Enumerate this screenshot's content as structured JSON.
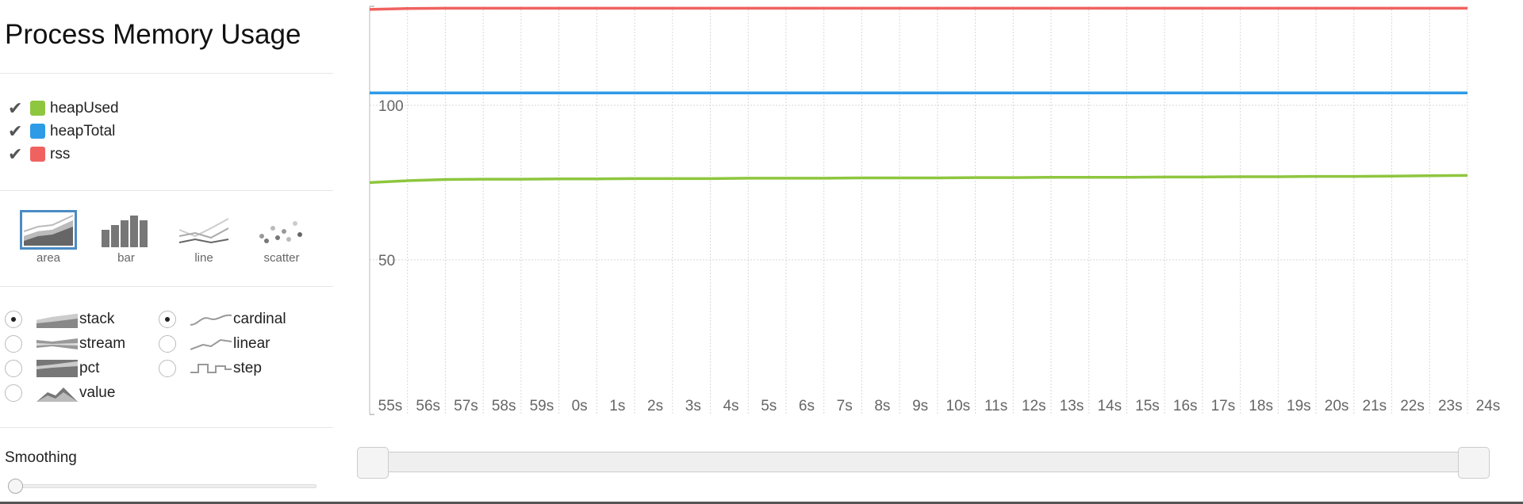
{
  "title": "Process Memory Usage",
  "legend": [
    {
      "label": "heapUsed",
      "color": "#8ec63f",
      "checked": true
    },
    {
      "label": "heapTotal",
      "color": "#2e9be6",
      "checked": true
    },
    {
      "label": "rss",
      "color": "#f0625f",
      "checked": true
    }
  ],
  "renderers": [
    {
      "label": "area",
      "icon": "area-chart-icon",
      "active": true
    },
    {
      "label": "bar",
      "icon": "bar-chart-icon",
      "active": false
    },
    {
      "label": "line",
      "icon": "line-chart-icon",
      "active": false
    },
    {
      "label": "scatter",
      "icon": "scatter-chart-icon",
      "active": false
    }
  ],
  "offsets": [
    {
      "label": "stack",
      "icon": "stack-icon",
      "selected": true
    },
    {
      "label": "stream",
      "icon": "stream-icon",
      "selected": false
    },
    {
      "label": "pct",
      "icon": "pct-icon",
      "selected": false
    },
    {
      "label": "value",
      "icon": "value-icon",
      "selected": false
    }
  ],
  "interpolations": [
    {
      "label": "cardinal",
      "icon": "cardinal-icon",
      "selected": true
    },
    {
      "label": "linear",
      "icon": "linear-icon",
      "selected": false
    },
    {
      "label": "step",
      "icon": "step-icon",
      "selected": false
    }
  ],
  "smoothing": {
    "label": "Smoothing",
    "value": 0
  },
  "range_slider": {
    "start": 0,
    "end": 1
  },
  "chart_data": {
    "type": "line",
    "x": [
      "55s",
      "56s",
      "57s",
      "58s",
      "59s",
      "0s",
      "1s",
      "2s",
      "3s",
      "4s",
      "5s",
      "6s",
      "7s",
      "8s",
      "9s",
      "10s",
      "11s",
      "12s",
      "13s",
      "14s",
      "15s",
      "16s",
      "17s",
      "18s",
      "19s",
      "20s",
      "21s",
      "22s",
      "23s",
      "24s"
    ],
    "y_ticks": [
      50,
      100
    ],
    "ylim": [
      0,
      132
    ],
    "grid": true,
    "series": [
      {
        "name": "rss",
        "color": "#f0625f",
        "values": [
          131,
          131.3,
          131.4,
          131.4,
          131.4,
          131.4,
          131.4,
          131.4,
          131.4,
          131.4,
          131.4,
          131.4,
          131.4,
          131.4,
          131.4,
          131.4,
          131.4,
          131.4,
          131.4,
          131.4,
          131.4,
          131.4,
          131.4,
          131.4,
          131.4,
          131.4,
          131.4,
          131.4,
          131.4,
          131.4
        ]
      },
      {
        "name": "heapTotal",
        "color": "#2e9be6",
        "values": [
          104,
          104,
          104,
          104,
          104,
          104,
          104,
          104,
          104,
          104,
          104,
          104,
          104,
          104,
          104,
          104,
          104,
          104,
          104,
          104,
          104,
          104,
          104,
          104,
          104,
          104,
          104,
          104,
          104,
          104
        ]
      },
      {
        "name": "heapUsed",
        "color": "#8ec63f",
        "values": [
          75,
          75.6,
          76,
          76.1,
          76.1,
          76.2,
          76.2,
          76.3,
          76.3,
          76.3,
          76.4,
          76.4,
          76.4,
          76.5,
          76.5,
          76.5,
          76.6,
          76.6,
          76.7,
          76.7,
          76.7,
          76.8,
          76.8,
          76.9,
          76.9,
          77,
          77,
          77.1,
          77.2,
          77.3
        ]
      }
    ]
  }
}
